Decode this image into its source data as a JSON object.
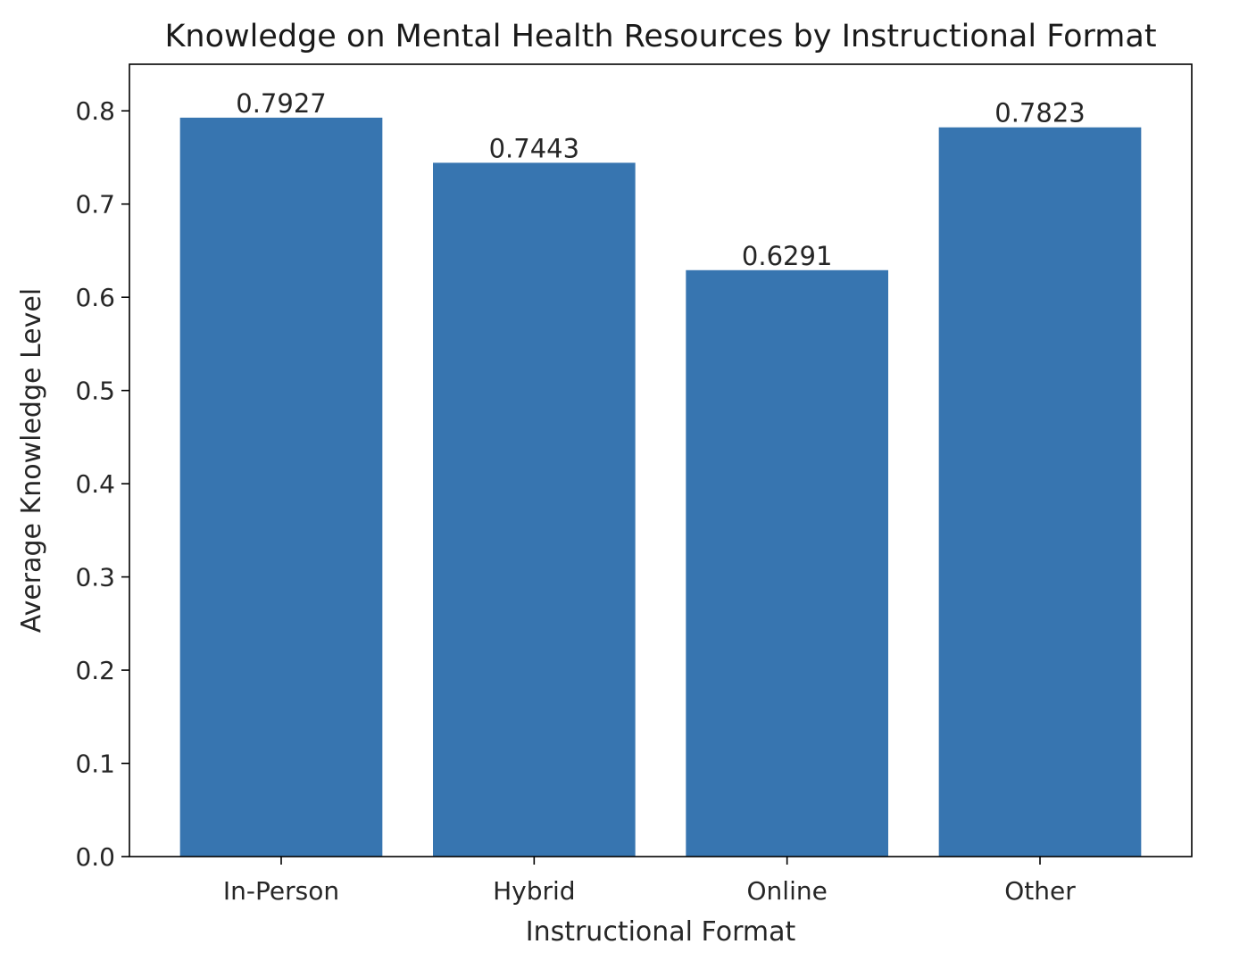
{
  "chart_data": {
    "type": "bar",
    "title": "Knowledge on Mental Health Resources by Instructional Format",
    "xlabel": "Instructional Format",
    "ylabel": "Average Knowledge Level",
    "categories": [
      "In-Person",
      "Hybrid",
      "Online",
      "Other"
    ],
    "values": [
      0.7927,
      0.7443,
      0.6291,
      0.7823
    ],
    "value_labels": [
      "0.7927",
      "0.7443",
      "0.6291",
      "0.7823"
    ],
    "ylim": [
      0,
      0.85
    ],
    "yticks": [
      0.0,
      0.1,
      0.2,
      0.3,
      0.4,
      0.5,
      0.6,
      0.7,
      0.8
    ],
    "ytick_labels": [
      "0.0",
      "0.1",
      "0.2",
      "0.3",
      "0.4",
      "0.5",
      "0.6",
      "0.7",
      "0.8"
    ],
    "grid": false,
    "bar_color": "#3775b0"
  }
}
